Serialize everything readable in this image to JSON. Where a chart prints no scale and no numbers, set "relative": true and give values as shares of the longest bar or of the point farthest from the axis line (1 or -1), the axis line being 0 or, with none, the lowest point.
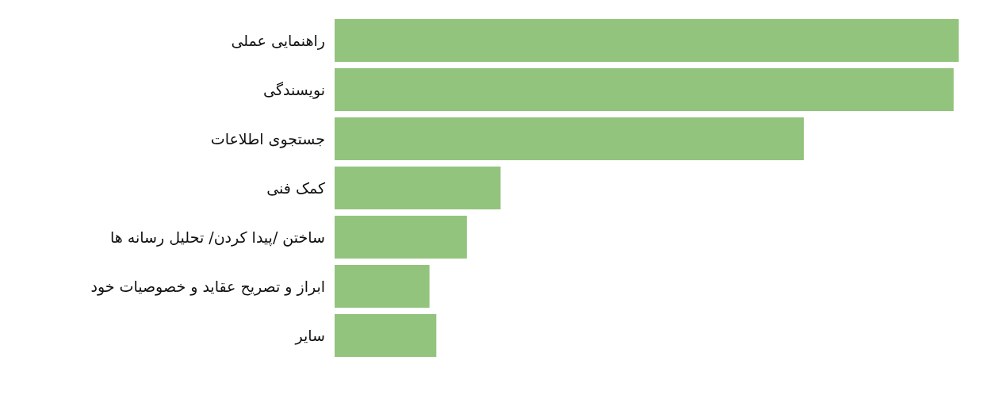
{
  "chart_data": {
    "type": "bar",
    "orientation": "horizontal",
    "relative": true,
    "categories": [
      "راهنمایی عملی",
      "نویسندگی",
      "جستجوی اطلاعات",
      "کمک فنی",
      "ساختن /پیدا کردن/ تحلیل رسانه ها",
      "ابراز و تصریح عقاید و خصوصیات خود",
      "سایر"
    ],
    "values": [
      1,
      0.992,
      0.752,
      0.266,
      0.212,
      0.152,
      0.163
    ],
    "color": "#93c47d"
  }
}
